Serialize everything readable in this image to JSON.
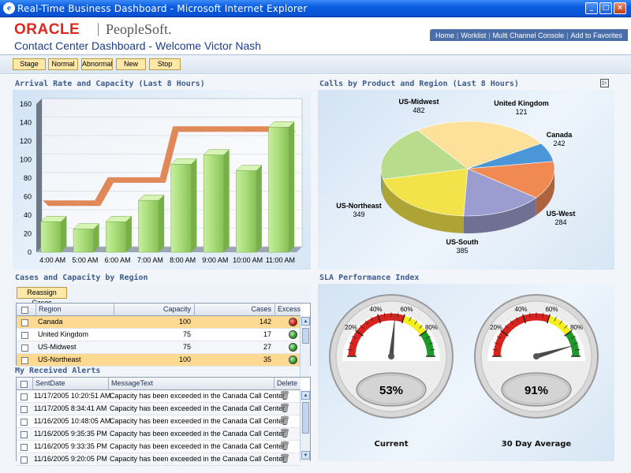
{
  "window": {
    "title": "Real-Time Business Dashboard - Microsoft Internet Explorer",
    "controls": [
      "_",
      "□",
      "×"
    ]
  },
  "header": {
    "logo_oracle": "ORACLE",
    "logo_peoplesoft": "PeopleSoft.",
    "page_title": "Contact Center Dashboard - Welcome Victor Nash",
    "nav": [
      "Home",
      "Worklist",
      "Multi Channel Console",
      "Add to Favorites"
    ]
  },
  "toolbar": {
    "buttons": [
      "Stage",
      "Normal",
      "Abnormal",
      "New",
      "Stop"
    ]
  },
  "sections": {
    "arrival": "Arrival Rate and Capacity (Last 8 Hours)",
    "calls": "Calls by Product and Region (Last 8 Hours)",
    "cases": "Cases and Capacity by Region",
    "alerts": "My Received Alerts",
    "sla": "SLA Performance Index"
  },
  "cases": {
    "reassign_label": "Reassign Cases",
    "headers": [
      "Region",
      "Capacity",
      "Cases",
      "Excess"
    ],
    "rows": [
      {
        "region": "Canada",
        "capacity": "100",
        "cases": "142",
        "excess": "red",
        "highlight": true
      },
      {
        "region": "United Kingdom",
        "capacity": "75",
        "cases": "17",
        "excess": "green",
        "highlight": false
      },
      {
        "region": "US-Midwest",
        "capacity": "75",
        "cases": "27",
        "excess": "green",
        "highlight": false
      },
      {
        "region": "US-Northeast",
        "capacity": "100",
        "cases": "35",
        "excess": "green",
        "highlight": true
      }
    ]
  },
  "alerts": {
    "headers": [
      "SentDate",
      "MessageText",
      "Delete"
    ],
    "rows": [
      {
        "date": "11/17/2005 10:20:51 AM",
        "message": "Capacity has been exceeded in the Canada Call Center"
      },
      {
        "date": "11/17/2005 8:34:41 AM",
        "message": "Capacity has been exceeded in the Canada Call Center"
      },
      {
        "date": "11/16/2005 10:48:05 AM",
        "message": "Capacity has been exceeded in the Canada Call Center"
      },
      {
        "date": "11/16/2005 9:35:35 PM",
        "message": "Capacity has been exceeded in the Canada Call Center"
      },
      {
        "date": "11/16/2005 9:33:35 PM",
        "message": "Capacity has been exceeded in the Canada Call Center"
      },
      {
        "date": "11/16/2005 9:20:05 PM",
        "message": "Capacity has been exceeded in the Canada Call Center"
      }
    ]
  },
  "gauges": [
    {
      "label": "Current",
      "value": 53,
      "display": "53%",
      "ticks": [
        "20%",
        "40%",
        "60%",
        "80%"
      ]
    },
    {
      "label": "30 Day Average",
      "value": 91,
      "display": "91%",
      "ticks": [
        "20%",
        "40%",
        "60%",
        "80%"
      ]
    }
  ],
  "colors": {
    "bar_green": "#a8dc78",
    "capacity_orange": "#e08858",
    "toolbar_button": "#fde8a8",
    "section_title": "#3e5d8c",
    "row_highlight": "#fdd992"
  },
  "chart_data": [
    {
      "type": "bar",
      "categories": [
        "4:00 AM",
        "5:00 AM",
        "6:00 AM",
        "7:00 AM",
        "8:00 AM",
        "9:00 AM",
        "10:00 AM",
        "11:00 AM"
      ],
      "series": [
        {
          "type": "bar",
          "values": [
            33,
            25,
            33,
            56,
            95,
            105,
            88,
            135
          ]
        },
        {
          "type": "step",
          "values": [
            50,
            50,
            75,
            75,
            130,
            130,
            130,
            130
          ]
        }
      ],
      "yticks": [
        0,
        20,
        40,
        60,
        80,
        100,
        120,
        140,
        160
      ],
      "ylim": [
        0,
        160
      ]
    },
    {
      "type": "pie",
      "labels": [
        "US-Midwest",
        "United Kingdom",
        "Canada",
        "US-West",
        "US-South",
        "US-Northeast"
      ],
      "values": [
        482,
        121,
        242,
        284,
        385,
        349
      ],
      "colors": [
        "#fde09a",
        "#4a96d6",
        "#f08a52",
        "#9b9ccf",
        "#f2e34a",
        "#b6dc8c"
      ]
    }
  ]
}
